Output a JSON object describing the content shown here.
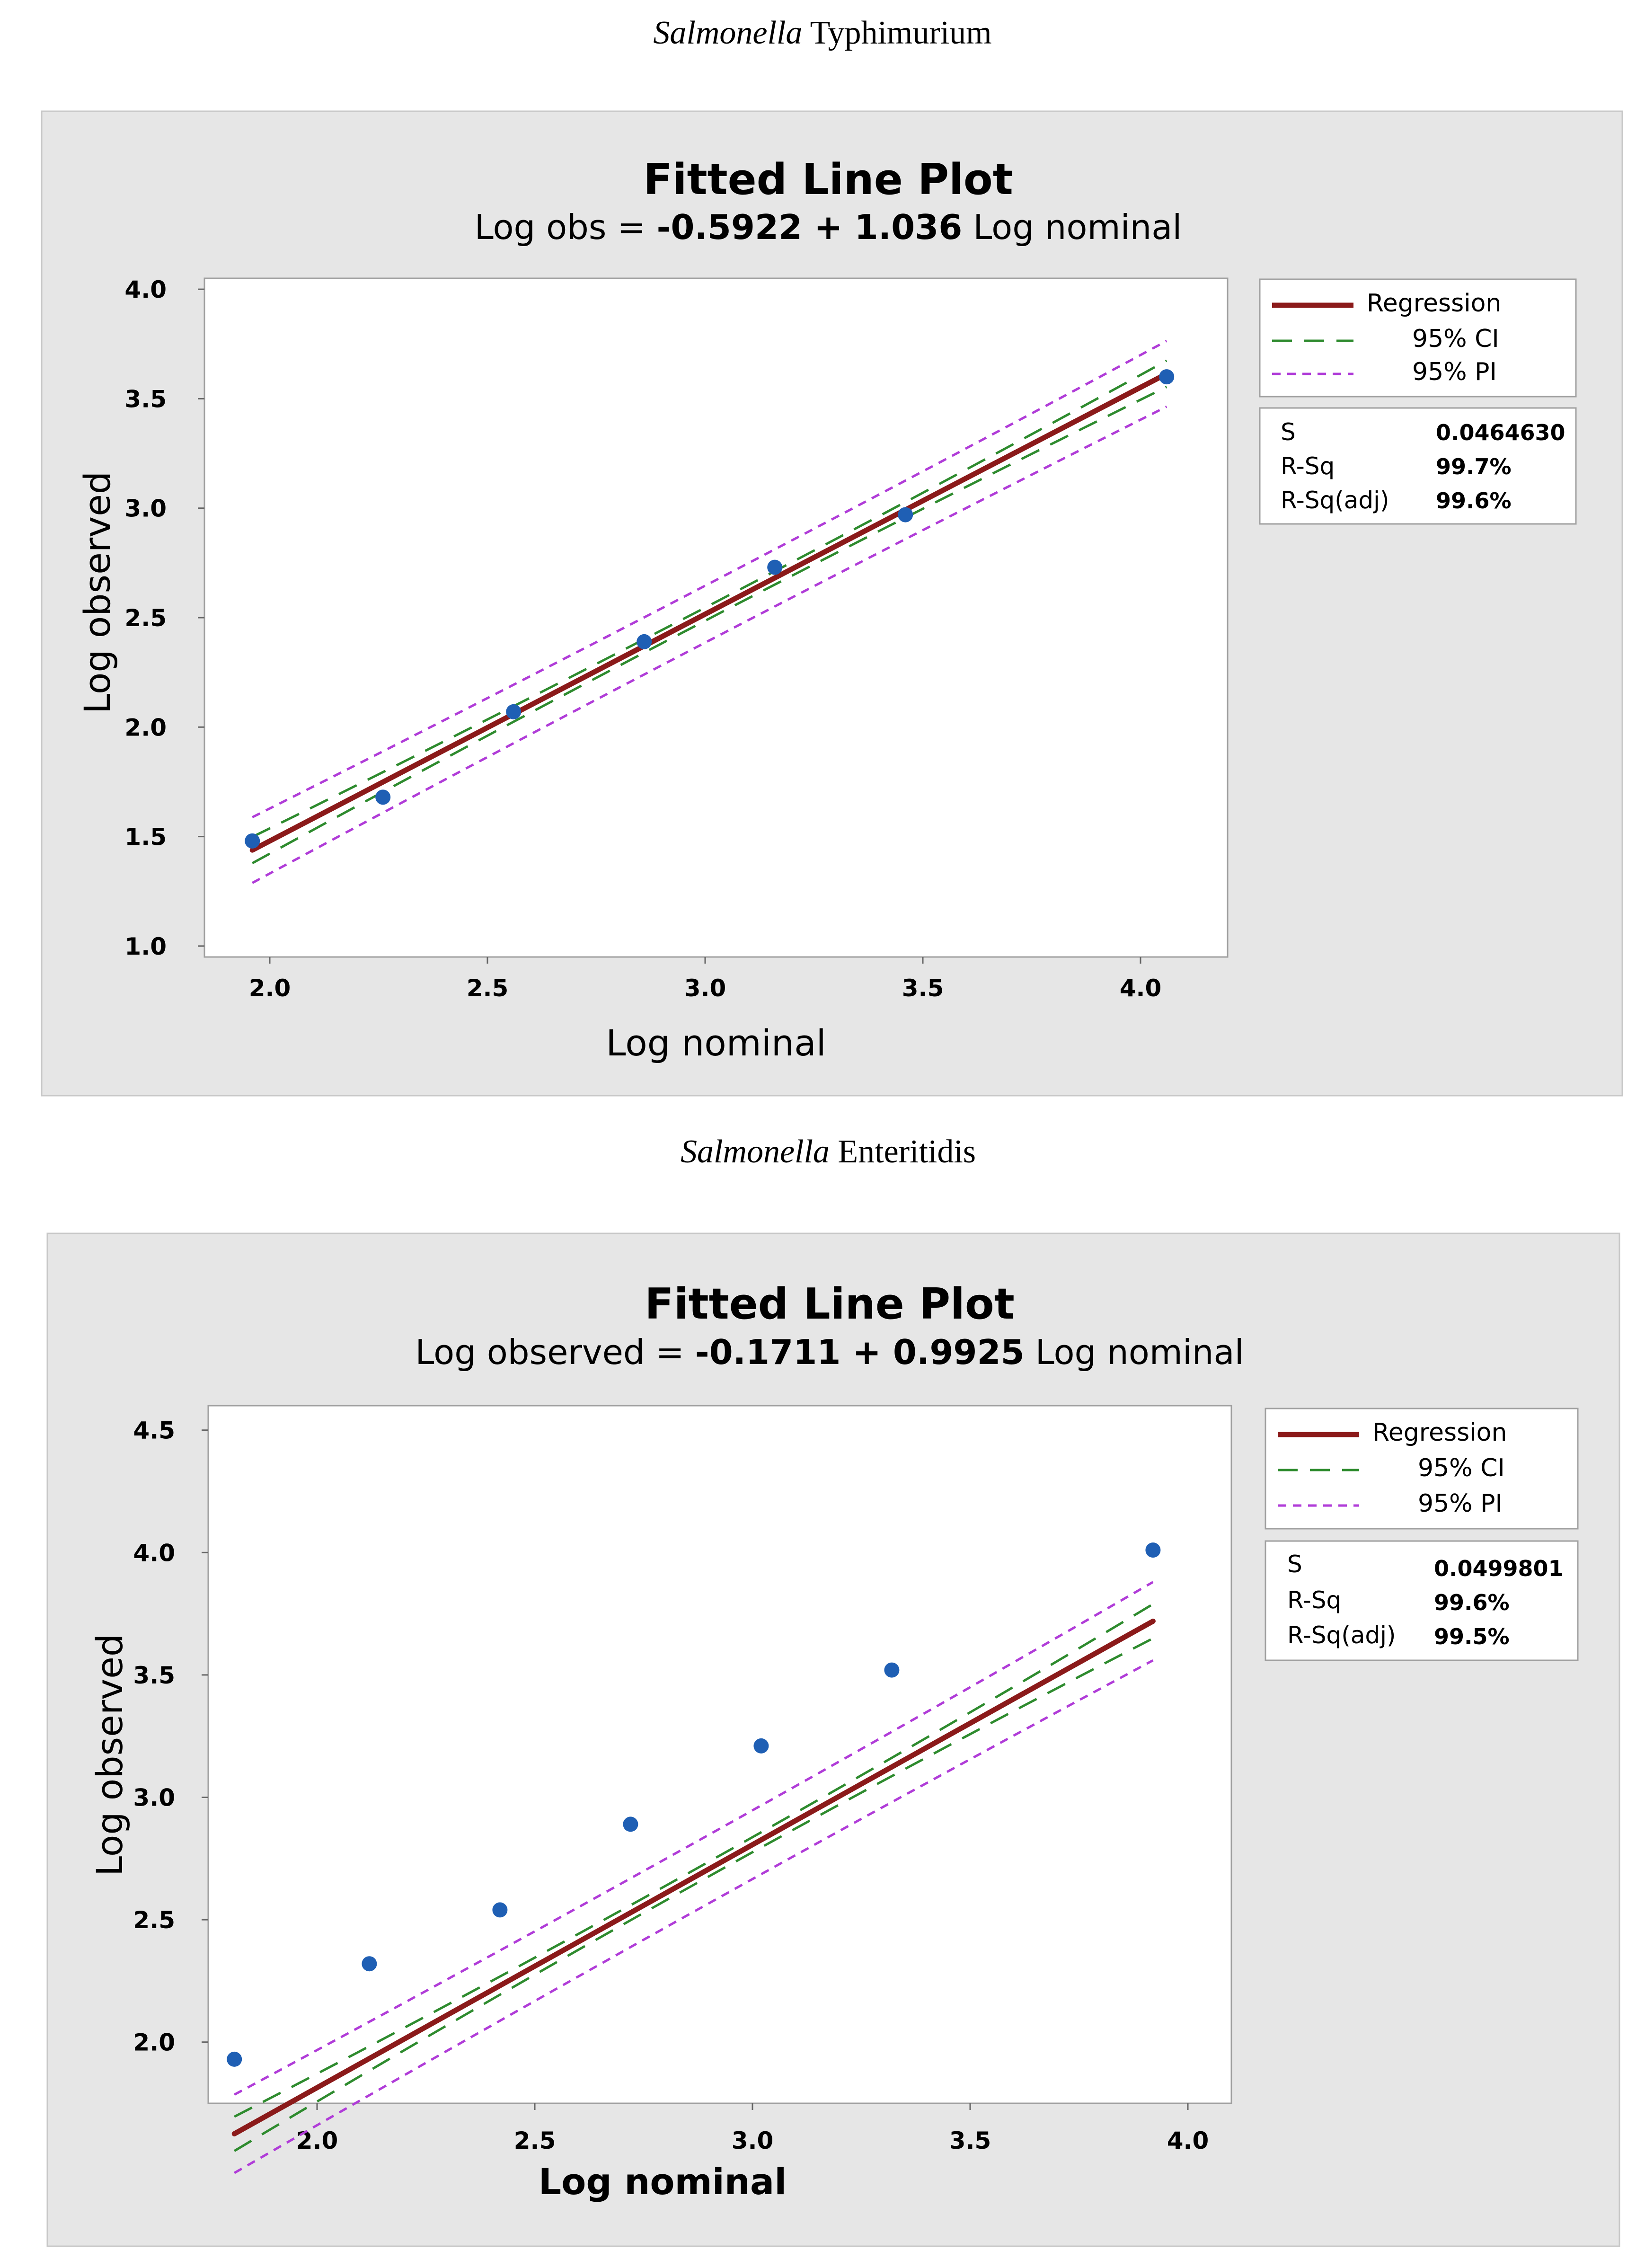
{
  "panels": [
    {
      "species_genus": "Salmonella",
      "species_name": "Typhimurium",
      "title": "Fitted Line Plot",
      "equation_lhs": "Log obs  =",
      "equation_rhs": "-0.5922 + 1.036",
      "equation_term": "Log nominal",
      "legend": {
        "regression": "Regression",
        "ci": "95% CI",
        "pi": "95% PI"
      },
      "stats": [
        {
          "label": "S",
          "value": "0.0464630"
        },
        {
          "label": "R-Sq",
          "value": "99.7%"
        },
        {
          "label": "R-Sq(adj)",
          "value": "99.6%"
        }
      ]
    },
    {
      "species_genus": "Salmonella",
      "species_name": "Enteritidis",
      "title": "Fitted Line Plot",
      "equation_lhs": "Log observed =",
      "equation_rhs": "-0.1711 + 0.9925",
      "equation_term": "Log nominal",
      "legend": {
        "regression": "Regression",
        "ci": "95% CI",
        "pi": "95% PI"
      },
      "stats": [
        {
          "label": "S",
          "value": "0.0499801"
        },
        {
          "label": "R-Sq",
          "value": "99.6%"
        },
        {
          "label": "R-Sq(adj)",
          "value": "99.5%"
        }
      ]
    }
  ],
  "chart_data": [
    {
      "type": "scatter",
      "title": "Fitted Line Plot",
      "xlabel": "Log nominal",
      "ylabel": "Log observed",
      "xlim": [
        1.85,
        4.2
      ],
      "ylim": [
        0.95,
        4.05
      ],
      "xticks": [
        2.0,
        2.5,
        3.0,
        3.5,
        4.0
      ],
      "xtick_labels": [
        "2.0",
        "2.5",
        "3.0",
        "3.5",
        "4.0"
      ],
      "yticks": [
        1.0,
        1.5,
        2.0,
        2.5,
        3.0,
        3.5,
        4.0
      ],
      "ytick_labels": [
        "1.0",
        "1.5",
        "2.0",
        "2.5",
        "3.0",
        "3.5",
        "4.0"
      ],
      "x": [
        1.96,
        2.26,
        2.56,
        2.86,
        3.16,
        3.46,
        4.06
      ],
      "y": [
        1.48,
        1.68,
        2.07,
        2.39,
        2.73,
        2.97,
        3.6
      ],
      "fit": {
        "intercept": -0.5922,
        "slope": 1.036
      },
      "ci_halfwidth": [
        0.06,
        0.03,
        0.06
      ],
      "pi_halfwidth": [
        0.15,
        0.13,
        0.15
      ],
      "legend": [
        "Regression",
        "95% CI",
        "95% PI"
      ]
    },
    {
      "type": "scatter",
      "title": "Fitted Line Plot",
      "xlabel": "Log nominal",
      "ylabel": "Log observed",
      "xlim": [
        1.75,
        4.1
      ],
      "ylim": [
        1.75,
        4.6
      ],
      "xticks": [
        2.0,
        2.5,
        3.0,
        3.5,
        4.0
      ],
      "xtick_labels": [
        "2.0",
        "2.5",
        "3.0",
        "3.5",
        "4.0"
      ],
      "yticks": [
        2.0,
        2.5,
        3.0,
        3.5,
        4.0,
        4.5
      ],
      "ytick_labels": [
        "2.0",
        "2.5",
        "3.0",
        "3.5",
        "4.0",
        "4.5"
      ],
      "x": [
        1.81,
        2.12,
        2.42,
        2.72,
        3.02,
        3.32,
        3.92
      ],
      "y": [
        1.93,
        2.32,
        2.54,
        2.89,
        3.21,
        3.52,
        4.01
      ],
      "fit": {
        "intercept": -0.1711,
        "slope": 0.9925
      },
      "ci_halfwidth": [
        0.07,
        0.03,
        0.07
      ],
      "pi_halfwidth": [
        0.16,
        0.14,
        0.16
      ],
      "legend": [
        "Regression",
        "95% CI",
        "95% PI"
      ]
    }
  ],
  "colors": {
    "panel_bg": "#e6e6e6",
    "panel_border": "#c8c8c8",
    "plot_bg": "#ffffff",
    "regression": "#8b1a1a",
    "ci": "#2e8b2e",
    "pi": "#b03cd8",
    "point": "#1f5fb4"
  }
}
